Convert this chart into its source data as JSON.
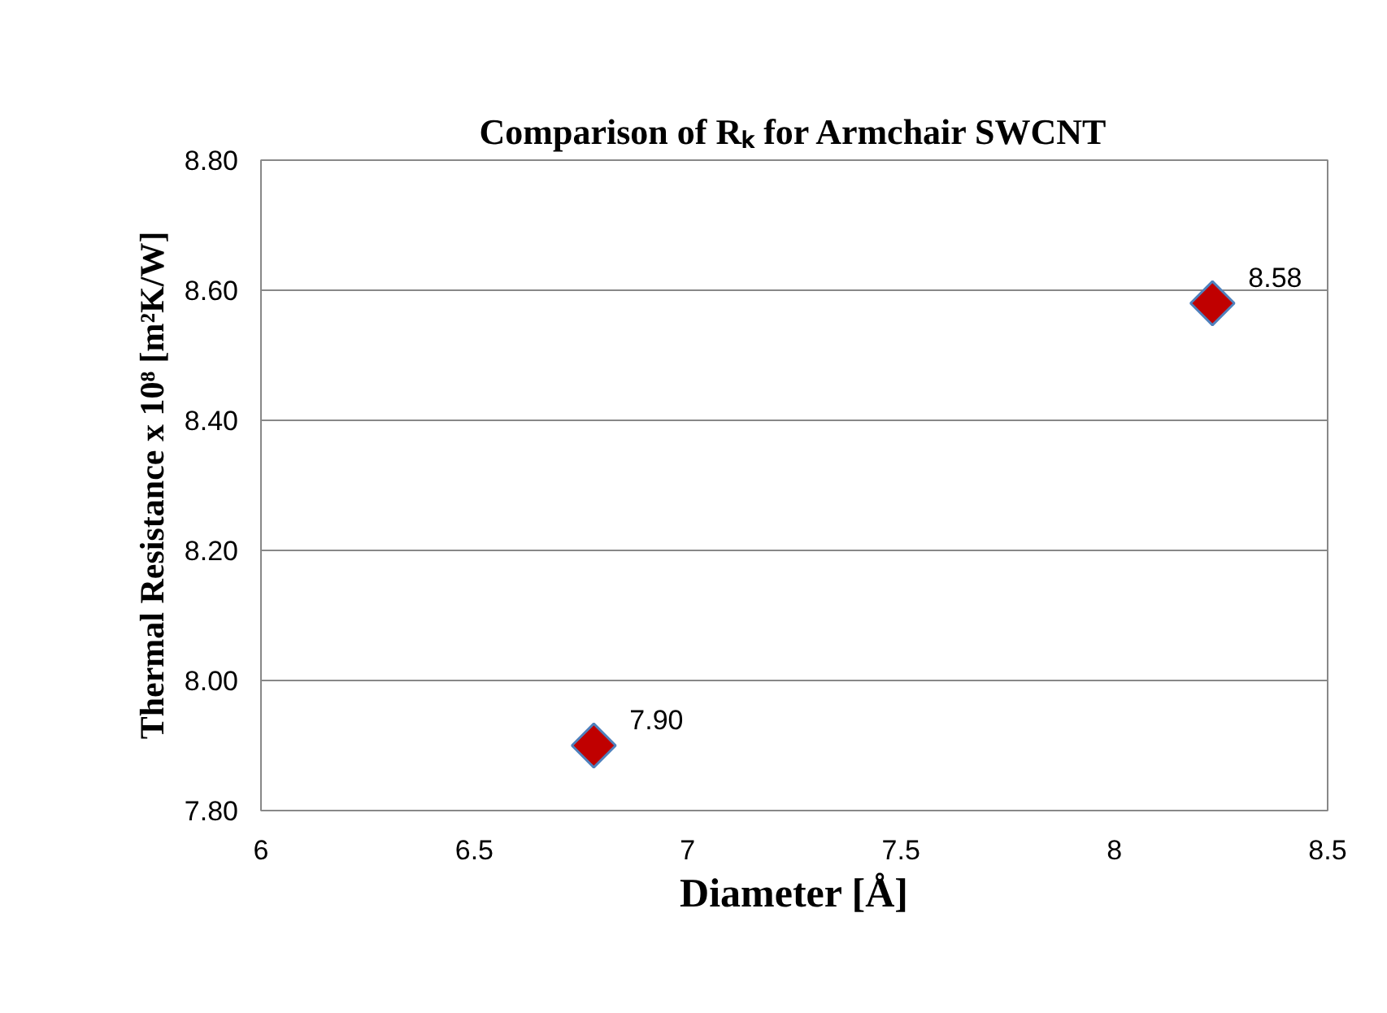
{
  "chart_data": {
    "type": "scatter",
    "title": "Comparison of Rₖ for Armchair SWCNT",
    "xlabel": "Diameter [Å]",
    "ylabel": "Thermal Resistance x 10⁸ [m²K/W]",
    "x": [
      6.78,
      8.23
    ],
    "series": [
      {
        "color": "#c00000",
        "values": [
          7.9,
          8.58
        ],
        "value_labels": [
          "7.90",
          "8.58"
        ]
      }
    ],
    "xlim": [
      6,
      8.5
    ],
    "xticks": [
      6,
      6.5,
      7,
      7.5,
      8,
      8.5
    ],
    "ylim": [
      7.8,
      8.8
    ],
    "yticks": [
      {
        "value": 7.8,
        "label": "7.80"
      },
      {
        "value": 8.0,
        "label": "8.00"
      },
      {
        "value": 8.2,
        "label": "8.20"
      },
      {
        "value": 8.4,
        "label": "8.40"
      },
      {
        "value": 8.6,
        "label": "8.60"
      },
      {
        "value": 8.8,
        "label": "8.80"
      }
    ],
    "grid": "y",
    "marker": "diamond"
  }
}
